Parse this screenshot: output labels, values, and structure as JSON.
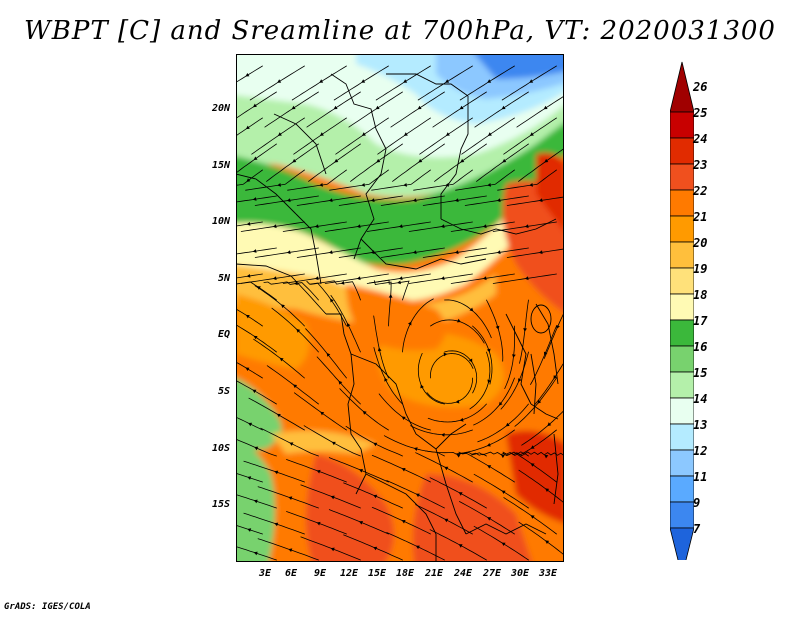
{
  "title": "WBPT [C] and Sreamline at 700hPa, VT: 2020031300",
  "credit": "GrADS: IGES/COLA",
  "map": {
    "lat_labels": [
      "20N",
      "15N",
      "10N",
      "5N",
      "EQ",
      "5S",
      "10S",
      "15S"
    ],
    "lon_labels": [
      "3E",
      "6E",
      "9E",
      "12E",
      "15E",
      "18E",
      "21E",
      "24E",
      "27E",
      "30E",
      "33E"
    ]
  },
  "colorbar": {
    "levels": [
      "26",
      "25",
      "24",
      "23",
      "22",
      "21",
      "20",
      "19",
      "18",
      "17",
      "16",
      "15",
      "14",
      "13",
      "12",
      "11",
      "9",
      "7"
    ],
    "colors": [
      "#a00000",
      "#c80000",
      "#e12b00",
      "#f0501e",
      "#ff7a00",
      "#ff9a00",
      "#ffbf3c",
      "#ffe17a",
      "#fffab4",
      "#3bb83b",
      "#78d26e",
      "#b4f0aa",
      "#e8fff0",
      "#b4ebff",
      "#8cc8ff",
      "#5aaaff",
      "#3c87f0",
      "#1e64dc"
    ]
  }
}
